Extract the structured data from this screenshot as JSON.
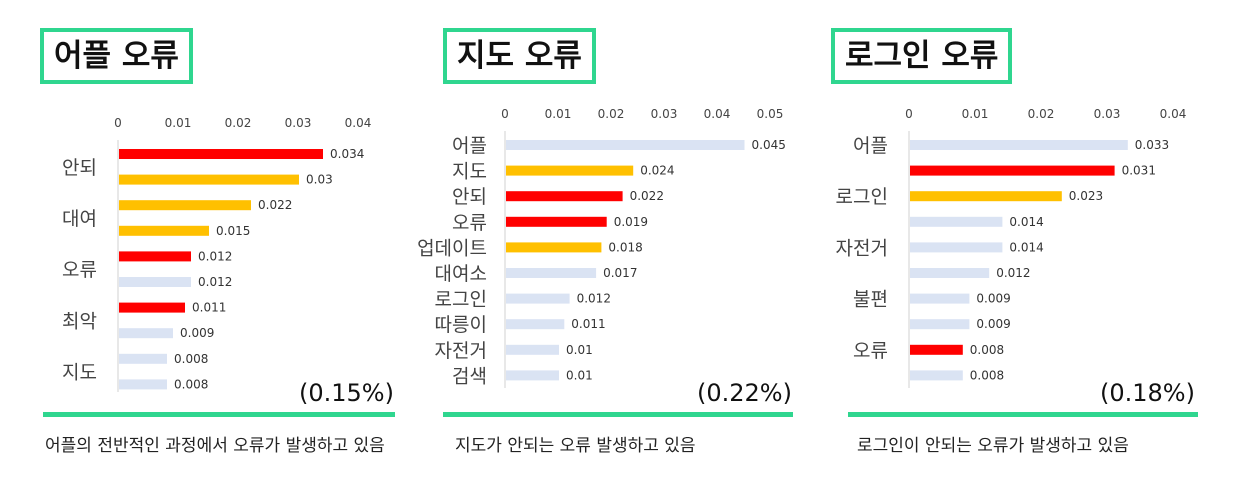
{
  "chart_data": [
    {
      "type": "bar",
      "orientation": "horizontal",
      "title": "어플 오류",
      "xlim": [
        0,
        0.04
      ],
      "xticks": [
        "0",
        "0.01",
        "0.02",
        "0.03",
        "0.04"
      ],
      "categories_shown": [
        "안되",
        "대여",
        "오류",
        "최악",
        "지도"
      ],
      "values": [
        0.034,
        0.03,
        0.022,
        0.015,
        0.012,
        0.012,
        0.011,
        0.009,
        0.008,
        0.008
      ],
      "value_labels": [
        "0.034",
        "0.03",
        "0.022",
        "0.015",
        "0.012",
        "0.012",
        "0.011",
        "0.009",
        "0.008",
        "0.008"
      ],
      "colors": [
        "#ff0000",
        "#ffc000",
        "#ffc000",
        "#ffc000",
        "#ff0000",
        "#dae3f3",
        "#ff0000",
        "#dae3f3",
        "#dae3f3",
        "#dae3f3"
      ],
      "percent_label": "(0.15%)",
      "caption": "어플의 전반적인 과정에서 오류가 발생하고 있음"
    },
    {
      "type": "bar",
      "orientation": "horizontal",
      "title": "지도 오류",
      "xlim": [
        0,
        0.05
      ],
      "xticks": [
        "0",
        "0.01",
        "0.02",
        "0.03",
        "0.04",
        "0.05"
      ],
      "categories": [
        "어플",
        "지도",
        "안되",
        "오류",
        "업데이트",
        "대여소",
        "로그인",
        "따릉이",
        "자전거",
        "검색"
      ],
      "values": [
        0.045,
        0.024,
        0.022,
        0.019,
        0.018,
        0.017,
        0.012,
        0.011,
        0.01,
        0.01
      ],
      "value_labels": [
        "0.045",
        "0.024",
        "0.022",
        "0.019",
        "0.018",
        "0.017",
        "0.012",
        "0.011",
        "0.01",
        "0.01"
      ],
      "colors": [
        "#dae3f3",
        "#ffc000",
        "#ff0000",
        "#ff0000",
        "#ffc000",
        "#dae3f3",
        "#dae3f3",
        "#dae3f3",
        "#dae3f3",
        "#dae3f3"
      ],
      "percent_label": "(0.22%)",
      "caption": "지도가 안되는 오류 발생하고 있음"
    },
    {
      "type": "bar",
      "orientation": "horizontal",
      "title": "로그인 오류",
      "xlim": [
        0,
        0.04
      ],
      "xticks": [
        "0",
        "0.01",
        "0.02",
        "0.03",
        "0.04"
      ],
      "categories_shown": [
        "어플",
        "로그인",
        "자전거",
        "불편",
        "오류"
      ],
      "values": [
        0.033,
        0.031,
        0.023,
        0.014,
        0.014,
        0.012,
        0.009,
        0.009,
        0.008,
        0.008
      ],
      "value_labels": [
        "0.033",
        "0.031",
        "0.023",
        "0.014",
        "0.014",
        "0.012",
        "0.009",
        "0.009",
        "0.008",
        "0.008"
      ],
      "colors": [
        "#dae3f3",
        "#ff0000",
        "#ffc000",
        "#dae3f3",
        "#dae3f3",
        "#dae3f3",
        "#dae3f3",
        "#dae3f3",
        "#ff0000",
        "#dae3f3"
      ],
      "percent_label": "(0.18%)",
      "caption": "로그인이 안되는 오류가 발생하고 있음"
    }
  ]
}
